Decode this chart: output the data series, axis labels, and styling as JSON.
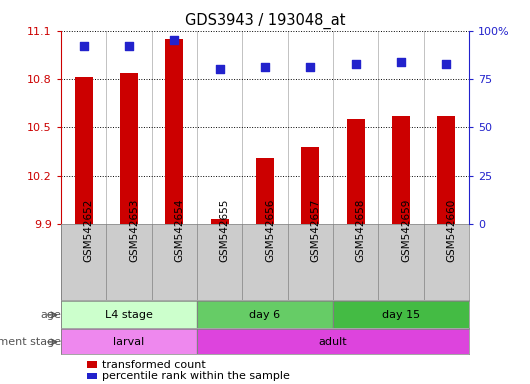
{
  "title": "GDS3943 / 193048_at",
  "samples": [
    "GSM542652",
    "GSM542653",
    "GSM542654",
    "GSM542655",
    "GSM542656",
    "GSM542657",
    "GSM542658",
    "GSM542659",
    "GSM542660"
  ],
  "transformed_count": [
    10.81,
    10.84,
    11.05,
    9.93,
    10.31,
    10.38,
    10.55,
    10.57,
    10.57
  ],
  "percentile_rank": [
    92,
    92,
    95,
    80,
    81,
    81,
    83,
    84,
    83
  ],
  "ylim_left": [
    9.9,
    11.1
  ],
  "ylim_right": [
    0,
    100
  ],
  "yticks_left": [
    9.9,
    10.2,
    10.5,
    10.8,
    11.1
  ],
  "yticks_right": [
    0,
    25,
    50,
    75,
    100
  ],
  "ytick_labels_right": [
    "0",
    "25",
    "50",
    "75",
    "100%"
  ],
  "bar_color": "#cc0000",
  "dot_color": "#2222cc",
  "age_groups": [
    {
      "label": "L4 stage",
      "start": 0,
      "end": 3,
      "color": "#ccffcc"
    },
    {
      "label": "day 6",
      "start": 3,
      "end": 6,
      "color": "#66cc66"
    },
    {
      "label": "day 15",
      "start": 6,
      "end": 9,
      "color": "#44bb44"
    }
  ],
  "dev_groups": [
    {
      "label": "larval",
      "start": 0,
      "end": 3,
      "color": "#ee88ee"
    },
    {
      "label": "adult",
      "start": 3,
      "end": 9,
      "color": "#dd44dd"
    }
  ],
  "age_label": "age",
  "dev_label": "development stage",
  "legend_bar_label": "transformed count",
  "legend_dot_label": "percentile rank within the sample",
  "tick_color_left": "#cc0000",
  "tick_color_right": "#2222cc",
  "sample_col_color": "#cccccc",
  "bar_width": 0.4
}
